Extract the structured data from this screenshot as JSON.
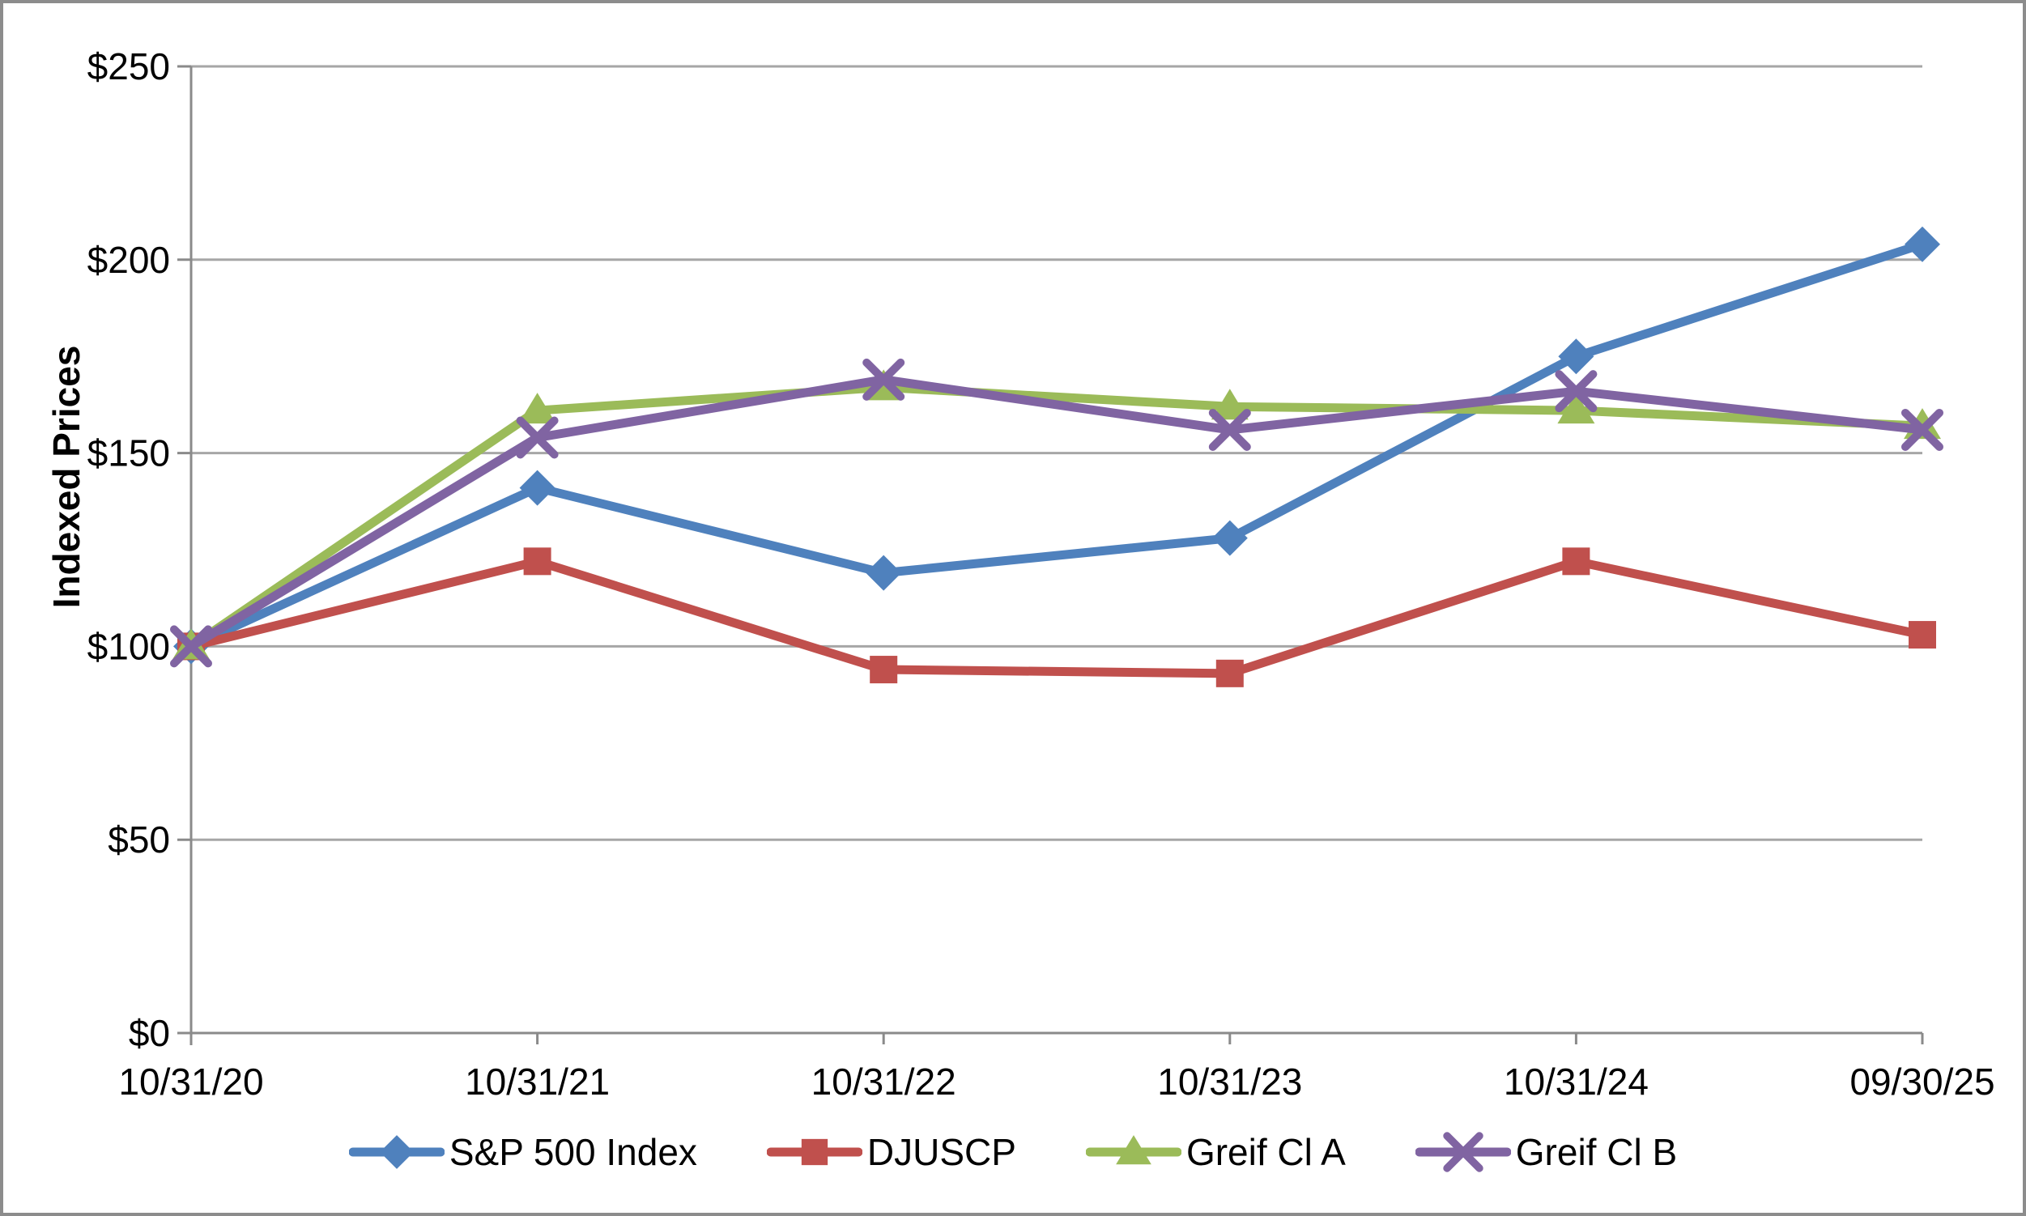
{
  "chart_data": {
    "type": "line",
    "title": "",
    "xlabel": "",
    "ylabel": "Indexed Prices",
    "categories": [
      "10/31/20",
      "10/31/21",
      "10/31/22",
      "10/31/23",
      "10/31/24",
      "09/30/25"
    ],
    "y_tick_labels": [
      "$0",
      "$50",
      "$100",
      "$150",
      "$200",
      "$250"
    ],
    "ylim": [
      0,
      250
    ],
    "y_tick_step": 50,
    "grid": true,
    "legend_position": "bottom",
    "series": [
      {
        "name": "S&P 500 Index",
        "color": "#4F81BD",
        "marker": "diamond",
        "values": [
          100,
          141,
          119,
          128,
          175,
          204
        ]
      },
      {
        "name": "DJUSCP",
        "color": "#C0504D",
        "marker": "square",
        "values": [
          100,
          122,
          94,
          93,
          122,
          103
        ]
      },
      {
        "name": "Greif Cl A",
        "color": "#9BBB59",
        "marker": "triangle",
        "values": [
          100,
          161,
          167,
          162,
          161,
          157
        ]
      },
      {
        "name": "Greif Cl B",
        "color": "#8064A2",
        "marker": "x",
        "values": [
          100,
          154,
          169,
          156,
          166,
          156
        ]
      }
    ]
  },
  "colors": {
    "gridline": "#A6A6A6",
    "axis": "#8A8A8A",
    "frame_border": "#8C8C8C",
    "text": "#000000",
    "background": "#FFFFFF"
  }
}
